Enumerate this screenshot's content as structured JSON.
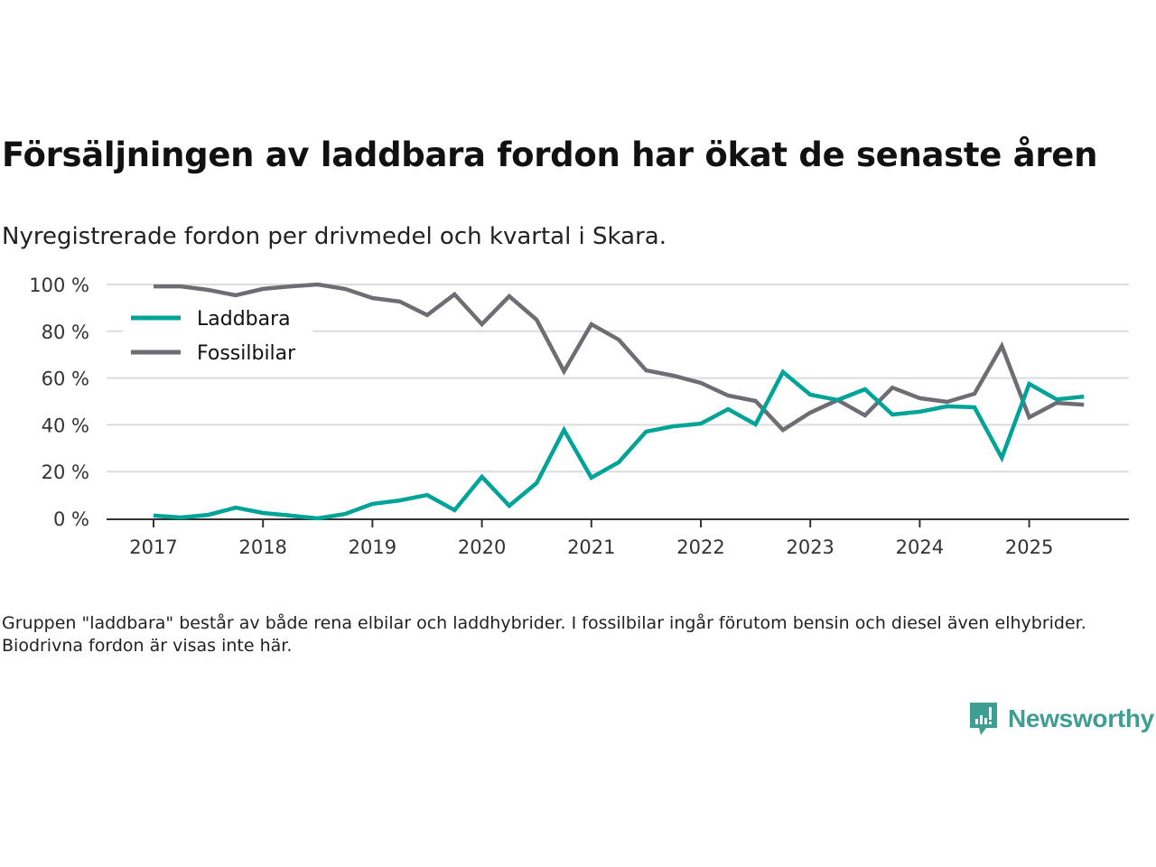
{
  "title": "Försäljningen av laddbara fordon har ökat de senaste åren",
  "subtitle": "Nyregistrerade fordon per drivmedel och kvartal i Skara.",
  "footnote": "Gruppen \"laddbara\" består av både rena elbilar och laddhybrider. I fossilbilar ingår förutom bensin och diesel även elhybrider. Biodrivna fordon är visas inte här.",
  "brand": {
    "name": "Newsworthy",
    "color": "#3f9e92"
  },
  "chart_data": {
    "type": "line",
    "title": "",
    "xlabel": "",
    "ylabel": "",
    "ylim": [
      0,
      100
    ],
    "xlim": [
      2017,
      2025.5
    ],
    "grid": true,
    "legend": "top-left",
    "y_ticks": [
      0,
      20,
      40,
      60,
      80,
      100
    ],
    "y_tick_labels": [
      "0 %",
      "20 %",
      "40 %",
      "60 %",
      "80 %",
      "100 %"
    ],
    "x_ticks": [
      2017,
      2018,
      2019,
      2020,
      2021,
      2022,
      2023,
      2024,
      2025
    ],
    "x_tick_labels": [
      "2017",
      "2018",
      "2019",
      "2020",
      "2021",
      "2022",
      "2023",
      "2024",
      "2025"
    ],
    "x": [
      "2017Q1",
      "2017Q2",
      "2017Q3",
      "2017Q4",
      "2018Q1",
      "2018Q2",
      "2018Q3",
      "2018Q4",
      "2019Q1",
      "2019Q2",
      "2019Q3",
      "2019Q4",
      "2020Q1",
      "2020Q2",
      "2020Q3",
      "2020Q4",
      "2021Q1",
      "2021Q2",
      "2021Q3",
      "2021Q4",
      "2022Q1",
      "2022Q2",
      "2022Q3",
      "2022Q4",
      "2023Q1",
      "2023Q2",
      "2023Q3",
      "2023Q4",
      "2024Q1",
      "2024Q2",
      "2024Q3",
      "2024Q4",
      "2025Q1",
      "2025Q2",
      "2025Q3"
    ],
    "series": [
      {
        "name": "Laddbara",
        "color": "#00a398",
        "values": [
          1.2,
          0.4,
          1.5,
          4.6,
          2.3,
          1.2,
          0,
          1.9,
          6.2,
          7.7,
          10,
          3.5,
          17.8,
          5.4,
          15.1,
          37.8,
          17.4,
          24,
          37.1,
          39.4,
          40.5,
          46.7,
          40.2,
          62.6,
          52.9,
          50.6,
          55.2,
          44.4,
          45.6,
          47.9,
          47.5,
          25.9,
          57.5,
          50.9,
          52.1
        ]
      },
      {
        "name": "Fossilbilar",
        "color": "#6e6d74",
        "values": [
          99.2,
          99.2,
          97.7,
          95.4,
          98.1,
          99.2,
          100,
          98.1,
          94.2,
          92.7,
          86.9,
          95.8,
          83,
          95,
          84.9,
          62.9,
          83,
          76.4,
          63.3,
          61,
          57.9,
          52.5,
          50.2,
          37.8,
          45.2,
          50.6,
          44,
          55.9,
          51.4,
          49.8,
          53.3,
          73.7,
          43.2,
          49.4,
          48.6
        ]
      }
    ]
  }
}
